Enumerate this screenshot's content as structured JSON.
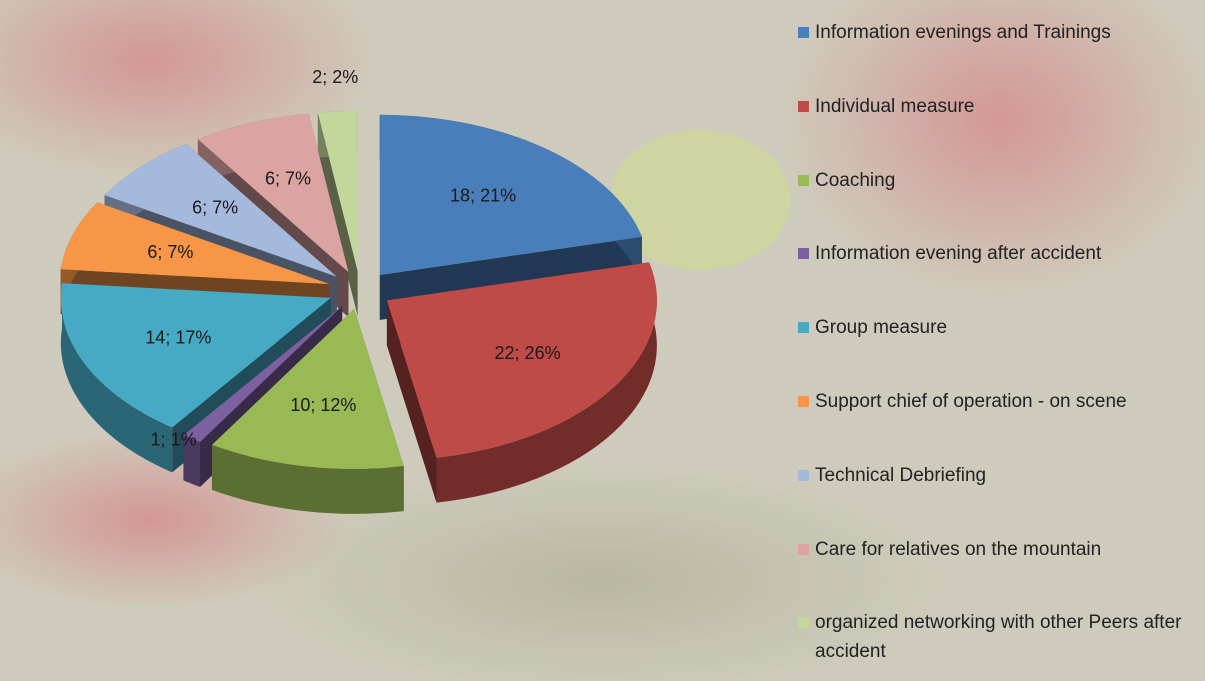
{
  "chart_data": {
    "type": "pie",
    "categories": [
      "Information evenings and Trainings",
      "Individual measure",
      "Coaching",
      "Information evening after accident",
      "Group measure",
      "Support chief of operation - on scene",
      "Technical Debriefing",
      "Care for relatives on the mountain",
      "organized networking with other Peers after accident"
    ],
    "values": [
      18,
      22,
      10,
      1,
      14,
      6,
      6,
      6,
      2
    ],
    "value_labels": [
      "18; 21%",
      "22; 26%",
      "10; 12%",
      "1; 1%",
      "14; 17%",
      "6; 7%",
      "6; 7%",
      "6; 7%",
      "2; 2%"
    ],
    "colors": [
      "#4a7ebb",
      "#be4b48",
      "#98b954",
      "#7d60a0",
      "#46aac5",
      "#f79646",
      "#a5b9dd",
      "#dba3a2",
      "#c4d79b"
    ],
    "legend": "right"
  }
}
